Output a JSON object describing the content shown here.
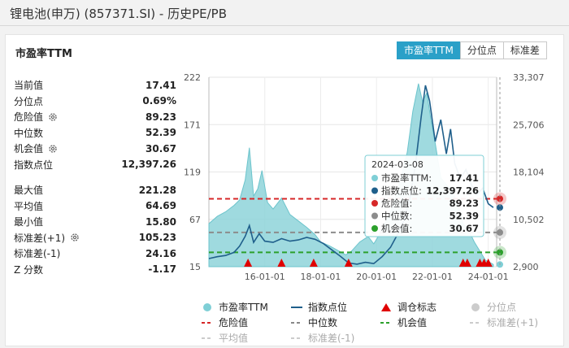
{
  "window": {
    "title": "锂电池(申万) (857371.SI) - 历史PE/PB"
  },
  "panel": {
    "title": "市盈率TTM"
  },
  "tabs": [
    {
      "label": "市盈率TTM",
      "active": true
    },
    {
      "label": "分位点",
      "active": false
    },
    {
      "label": "标准差",
      "active": false
    }
  ],
  "stats_top": [
    {
      "label": "当前值",
      "value": "17.41",
      "gear": false
    },
    {
      "label": "分位点",
      "value": "0.69%",
      "gear": false
    },
    {
      "label": "危险值",
      "value": "89.23",
      "gear": true
    },
    {
      "label": "中位数",
      "value": "52.39",
      "gear": false
    },
    {
      "label": "机会值",
      "value": "30.67",
      "gear": true
    },
    {
      "label": "指数点位",
      "value": "12,397.26",
      "gear": false
    }
  ],
  "stats_bottom": [
    {
      "label": "最大值",
      "value": "221.28",
      "gear": false
    },
    {
      "label": "平均值",
      "value": "64.69",
      "gear": false
    },
    {
      "label": "最小值",
      "value": "15.80",
      "gear": false
    },
    {
      "label": "标准差(+1)",
      "value": "105.23",
      "gear": true
    },
    {
      "label": "标准差(-1)",
      "value": "24.16",
      "gear": false
    },
    {
      "label": "Z 分数",
      "value": "-1.17",
      "gear": false
    }
  ],
  "tooltip": {
    "date": "2024-03-08",
    "rows": [
      {
        "label": "市盈率TTM:",
        "value": "17.41",
        "color": "#7fcfd6"
      },
      {
        "label": "指数点位:",
        "value": "12,397.26",
        "color": "#1f5f8b"
      },
      {
        "label": "危险值:",
        "value": "89.23",
        "color": "#d62728"
      },
      {
        "label": "中位数:",
        "value": "52.39",
        "color": "#8c8c8c"
      },
      {
        "label": "机会值:",
        "value": "30.67",
        "color": "#2ca02c"
      }
    ]
  },
  "legend": [
    [
      {
        "label": "市盈率TTM",
        "kind": "dot",
        "color": "#7fcfd6",
        "faded": false
      },
      {
        "label": "指数点位",
        "kind": "line",
        "color": "#1f5f8b",
        "faded": false
      },
      {
        "label": "调仓标志",
        "kind": "tri",
        "color": "#e00000",
        "faded": false
      },
      {
        "label": "分位点",
        "kind": "dot",
        "color": "#cccccc",
        "faded": true
      }
    ],
    [
      {
        "label": "危险值",
        "kind": "dash",
        "color": "#d62728",
        "faded": false
      },
      {
        "label": "中位数",
        "kind": "dash",
        "color": "#888888",
        "faded": false
      },
      {
        "label": "机会值",
        "kind": "dash",
        "color": "#2ca02c",
        "faded": false
      },
      {
        "label": "标准差(+1)",
        "kind": "dash",
        "color": "#cccccc",
        "faded": true
      }
    ],
    [
      {
        "label": "平均值",
        "kind": "dash",
        "color": "#cccccc",
        "faded": true
      },
      {
        "label": "标准差(-1)",
        "kind": "dash",
        "color": "#cccccc",
        "faded": true
      }
    ]
  ],
  "chart_data": {
    "type": "area",
    "title": "",
    "x_ticks": [
      "16-01-01",
      "18-01-01",
      "20-01-01",
      "22-01-01",
      "24-01-01"
    ],
    "y_left_ticks": [
      "222",
      "171",
      "119",
      "67",
      "15"
    ],
    "y_right_ticks": [
      "33,307",
      "25,706",
      "18,104",
      "10,502",
      "2,900"
    ],
    "y_left_range": [
      15,
      222
    ],
    "y_right_range": [
      2900,
      33307
    ],
    "x_range": [
      2014.0,
      2024.3
    ],
    "grid": true,
    "reference_lines": {
      "danger": 89.23,
      "median": 52.39,
      "opportunity": 30.67
    },
    "series": [
      {
        "name": "市盈率TTM",
        "x": [
          2014.0,
          2014.3,
          2014.6,
          2014.9,
          2015.1,
          2015.3,
          2015.45,
          2015.6,
          2015.75,
          2015.9,
          2016.1,
          2016.3,
          2016.6,
          2016.9,
          2017.2,
          2017.5,
          2017.8,
          2018.0,
          2018.3,
          2018.6,
          2018.9,
          2019.1,
          2019.4,
          2019.7,
          2019.9,
          2020.1,
          2020.3,
          2020.5,
          2020.7,
          2020.9,
          2021.1,
          2021.3,
          2021.5,
          2021.65,
          2021.8,
          2021.95,
          2022.1,
          2022.3,
          2022.5,
          2022.7,
          2022.9,
          2023.1,
          2023.3,
          2023.5,
          2023.7,
          2023.9,
          2024.1,
          2024.18
        ],
        "y": [
          62,
          70,
          75,
          82,
          88,
          110,
          145,
          92,
          100,
          120,
          85,
          78,
          90,
          72,
          65,
          58,
          50,
          42,
          38,
          33,
          28,
          32,
          42,
          48,
          40,
          50,
          62,
          75,
          92,
          115,
          140,
          185,
          215,
          195,
          205,
          175,
          150,
          112,
          105,
          98,
          85,
          62,
          55,
          42,
          32,
          22,
          19,
          17.41
        ]
      },
      {
        "name": "指数点位",
        "x": [
          2014.0,
          2014.3,
          2014.6,
          2014.9,
          2015.1,
          2015.3,
          2015.45,
          2015.6,
          2015.8,
          2016.0,
          2016.3,
          2016.6,
          2016.9,
          2017.2,
          2017.5,
          2017.8,
          2018.1,
          2018.4,
          2018.7,
          2019.0,
          2019.3,
          2019.6,
          2019.9,
          2020.2,
          2020.5,
          2020.8,
          2021.0,
          2021.2,
          2021.4,
          2021.6,
          2021.75,
          2021.9,
          2022.1,
          2022.3,
          2022.5,
          2022.65,
          2022.8,
          2023.0,
          2023.2,
          2023.4,
          2023.6,
          2023.8,
          2024.0,
          2024.18
        ],
        "y": [
          4200,
          4500,
          4700,
          5200,
          6200,
          7800,
          9500,
          6800,
          8200,
          7000,
          6800,
          7400,
          7000,
          7200,
          7600,
          7300,
          6600,
          5600,
          4600,
          3500,
          3300,
          3600,
          3400,
          4500,
          6000,
          8500,
          10500,
          14000,
          19500,
          27000,
          32000,
          29500,
          23000,
          26500,
          21000,
          25000,
          19500,
          17000,
          18500,
          16000,
          14500,
          15500,
          13000,
          12397.26
        ]
      }
    ],
    "rebalance_markers": [
      2015.4,
      2016.6,
      2017.75,
      2019.0,
      2023.1,
      2023.25,
      2023.7,
      2023.85,
      2024.0
    ]
  }
}
